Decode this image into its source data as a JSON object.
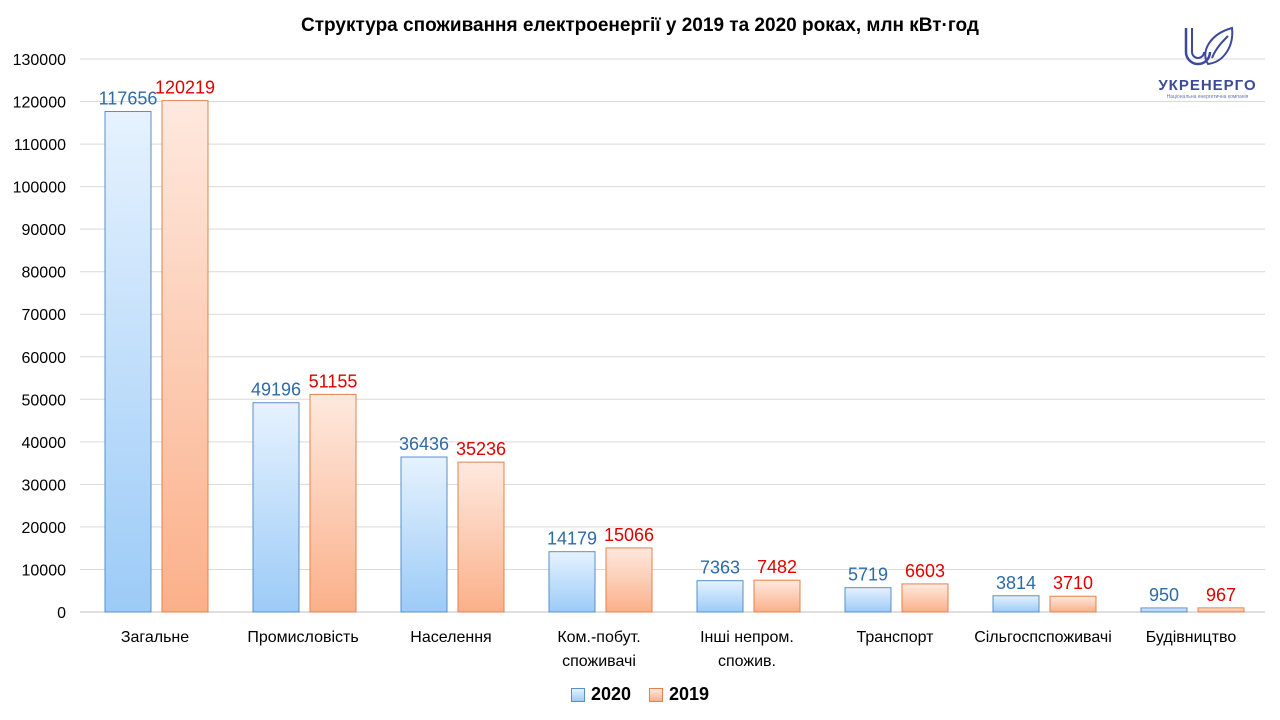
{
  "chart_data": {
    "type": "bar",
    "title": "Структура споживання електроенергії у 2019 та 2020 роках, млн кВт·год",
    "categories": [
      "Загальне",
      "Промисловість",
      "Населення",
      "Ком.-побут. споживачі",
      "Інші непром. спожив.",
      "Транспорт",
      "Сільгоспспоживачі",
      "Будівництво"
    ],
    "category_lines": [
      [
        "Загальне"
      ],
      [
        "Промисловість"
      ],
      [
        "Населення"
      ],
      [
        "Ком.-побут.",
        "споживачі"
      ],
      [
        "Інші непром.",
        "спожив."
      ],
      [
        "Транспорт"
      ],
      [
        "Сільгоспспоживачі"
      ],
      [
        "Будівництво"
      ]
    ],
    "series": [
      {
        "name": "2020",
        "values": [
          117656,
          49196,
          36436,
          14179,
          7363,
          5719,
          3814,
          950
        ],
        "color": "#9ccbf7",
        "border": "#5b8fc5",
        "label_color": "#2e6aa8"
      },
      {
        "name": "2019",
        "values": [
          120219,
          51155,
          35236,
          15066,
          7482,
          6603,
          3710,
          967
        ],
        "color": "#fbb08a",
        "border": "#e0834d",
        "label_color": "#e00000"
      }
    ],
    "ylim": [
      0,
      130000
    ],
    "yticks": [
      0,
      10000,
      20000,
      30000,
      40000,
      50000,
      60000,
      70000,
      80000,
      90000,
      100000,
      110000,
      120000,
      130000
    ],
    "grid": true,
    "legend": "bottom",
    "xlabel": "",
    "ylabel": ""
  },
  "logo": {
    "name": "УКРЕНЕРГО",
    "tagline": "Національна енергетична компанія"
  }
}
